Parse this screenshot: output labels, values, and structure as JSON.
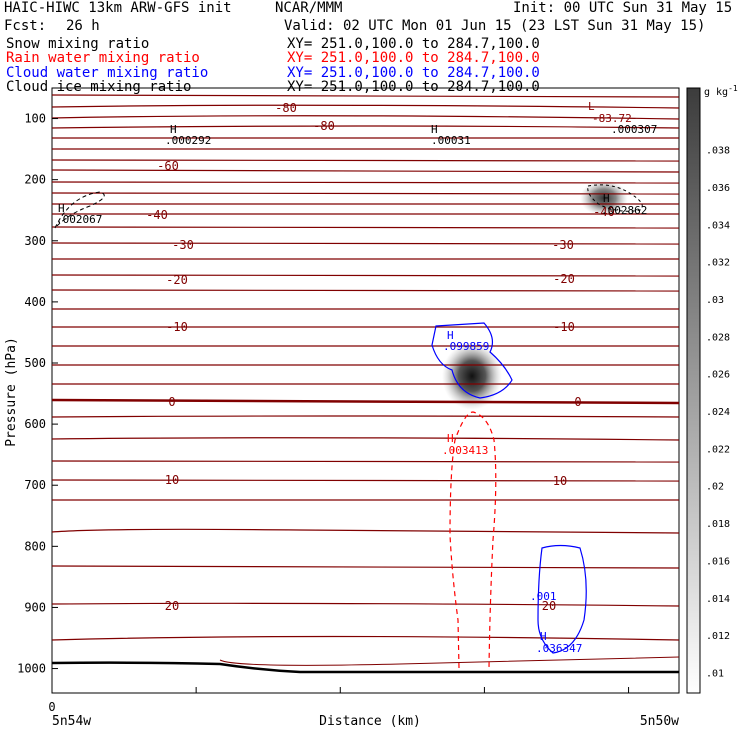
{
  "header": {
    "model": "HAIC-HIWC 13km ARW-GFS init",
    "org": "NCAR/MMM",
    "init": "Init: 00 UTC Sun 31 May 15",
    "fcst_label": "Fcst:",
    "fcst_value": "26 h",
    "valid": "Valid: 02 UTC Mon 01 Jun 15 (23 LST Sun 31 May 15)"
  },
  "fields": [
    {
      "name": "Snow mixing ratio",
      "xy": "XY= 251.0,100.0 to 284.7,100.0",
      "color": "#000000"
    },
    {
      "name": "Rain water mixing ratio",
      "xy": "XY= 251.0,100.0 to 284.7,100.0",
      "color": "#ff0000"
    },
    {
      "name": "Cloud water mixing ratio",
      "xy": "XY= 251.0,100.0 to 284.7,100.0",
      "color": "#0000ff"
    },
    {
      "name": "Cloud ice mixing ratio",
      "xy": "XY= 251.0,100.0 to 284.7,100.0",
      "color": "#000000"
    }
  ],
  "chart_data": {
    "type": "contour",
    "xlabel": "Distance (km)",
    "ylabel": "Pressure (hPa)",
    "x_start_tick": "0",
    "x_endpoints": [
      "5n54w",
      "5n50w"
    ],
    "yticks": [
      100,
      200,
      300,
      400,
      500,
      600,
      700,
      800,
      900,
      1000
    ],
    "ylim": [
      1040,
      50
    ],
    "colorbar": {
      "unit": "g kg",
      "unit_exp": "-1",
      "ticks": [
        ".01",
        ".012",
        ".014",
        ".016",
        ".018",
        ".02",
        ".022",
        ".024",
        ".026",
        ".028",
        ".03",
        ".032",
        ".034",
        ".036",
        ".038"
      ]
    },
    "temperature_contours": [
      {
        "label": "-80",
        "p": 112
      },
      {
        "label": "-80",
        "p": 140
      },
      {
        "label": "-60",
        "p": 158
      },
      {
        "label": "-40",
        "p": 230
      },
      {
        "label": "-30",
        "p": 282
      },
      {
        "label": "-20",
        "p": 330
      },
      {
        "label": "-10",
        "p": 428
      },
      {
        "label": "0",
        "p": 566
      },
      {
        "label": "10",
        "p": 700
      },
      {
        "label": "20",
        "p": 900
      }
    ],
    "annotations": [
      {
        "text": "H",
        "color": "#000000",
        "role": "max"
      },
      {
        "text": ".000292",
        "color": "#000000"
      },
      {
        "text": "H",
        "color": "#000000",
        "role": "max"
      },
      {
        "text": ".00031",
        "color": "#000000"
      },
      {
        "text": "L",
        "color": "#8b0000",
        "role": "min"
      },
      {
        "text": "-83.72",
        "color": "#8b0000"
      },
      {
        "text": ".000307",
        "color": "#000000"
      },
      {
        "text": "H",
        "color": "#000000",
        "role": "max"
      },
      {
        "text": ".002067",
        "color": "#000000"
      },
      {
        "text": "H",
        "color": "#000000",
        "role": "max"
      },
      {
        "text": ".002862",
        "color": "#000000"
      },
      {
        "text": "H",
        "color": "#0000ff",
        "role": "max"
      },
      {
        "text": ".099859",
        "color": "#0000ff"
      },
      {
        "text": "H",
        "color": "#ff0000",
        "role": "max"
      },
      {
        "text": ".003413",
        "color": "#ff0000"
      },
      {
        "text": ".001",
        "color": "#0000ff"
      },
      {
        "text": "H",
        "color": "#0000ff",
        "role": "max"
      },
      {
        "text": ".036347",
        "color": "#0000ff"
      }
    ]
  }
}
